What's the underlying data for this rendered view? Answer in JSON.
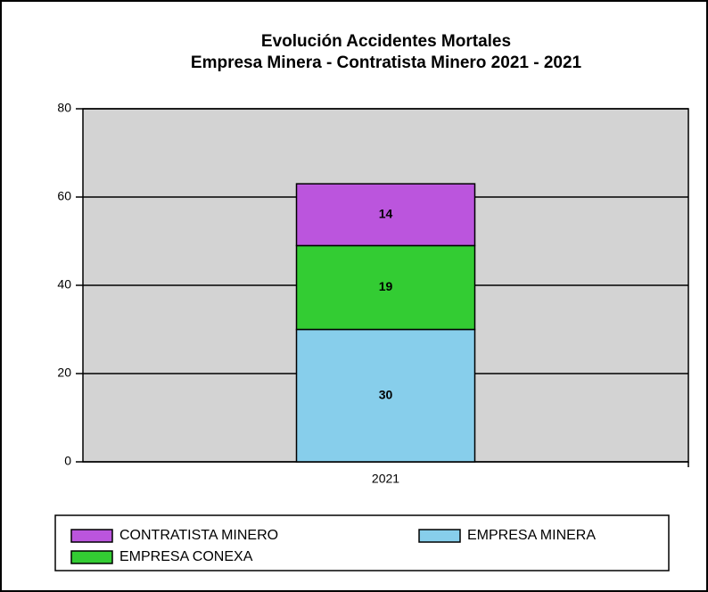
{
  "chart_data": {
    "type": "stacked_bar",
    "title": [
      "Evolución Accidentes Mortales",
      "Empresa Minera - Contratista Minero   2021 - 2021"
    ],
    "categories": [
      "2021"
    ],
    "series": [
      {
        "name": "EMPRESA MINERA",
        "color": "#87ceeb",
        "values": [
          30
        ]
      },
      {
        "name": "EMPRESA CONEXA",
        "color": "#33cc33",
        "values": [
          19
        ]
      },
      {
        "name": "CONTRATISTA MINERO",
        "color": "#bb55dd",
        "values": [
          14
        ]
      }
    ],
    "ylim": [
      0,
      80
    ],
    "yticks": [
      0,
      20,
      40,
      60,
      80
    ],
    "grid": true
  }
}
